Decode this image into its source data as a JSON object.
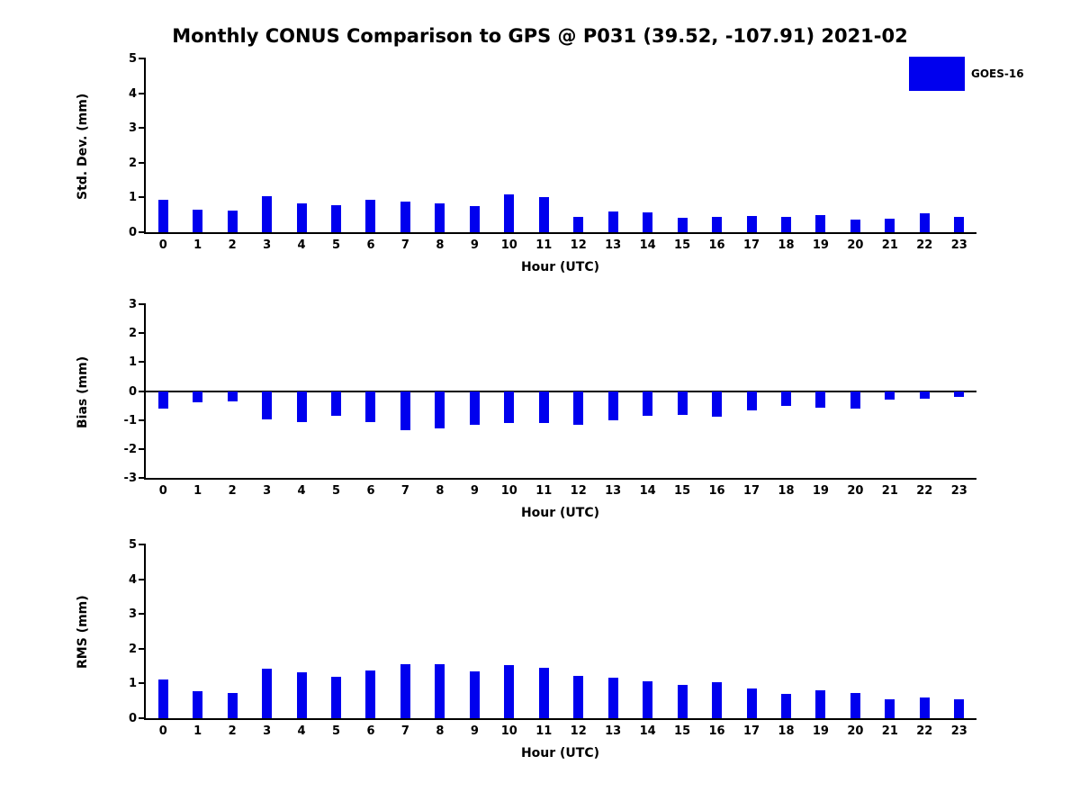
{
  "title": "Monthly CONUS Comparison to GPS @ P031 (39.52, -107.91) 2021-02",
  "legend": {
    "label": "GOES-16",
    "color": "#0000ee"
  },
  "chart_data": [
    {
      "type": "bar",
      "name": "std-dev",
      "title": "",
      "ylabel": "Std. Dev. (mm)",
      "xlabel": "Hour (UTC)",
      "ylim": [
        0,
        5
      ],
      "yticks": [
        0,
        1,
        2,
        3,
        4,
        5
      ],
      "grid": false,
      "categories": [
        "0",
        "1",
        "2",
        "3",
        "4",
        "5",
        "6",
        "7",
        "8",
        "9",
        "10",
        "11",
        "12",
        "13",
        "14",
        "15",
        "16",
        "17",
        "18",
        "19",
        "20",
        "21",
        "22",
        "23"
      ],
      "values": [
        0.92,
        0.64,
        0.62,
        1.03,
        0.82,
        0.79,
        0.92,
        0.87,
        0.82,
        0.74,
        1.08,
        1.0,
        0.44,
        0.6,
        0.56,
        0.41,
        0.44,
        0.46,
        0.44,
        0.49,
        0.36,
        0.38,
        0.54,
        0.44
      ]
    },
    {
      "type": "bar",
      "name": "bias",
      "title": "",
      "ylabel": "Bias (mm)",
      "xlabel": "Hour (UTC)",
      "ylim": [
        -3,
        3
      ],
      "yticks": [
        -3,
        -2,
        -1,
        0,
        1,
        2,
        3
      ],
      "grid": false,
      "categories": [
        "0",
        "1",
        "2",
        "3",
        "4",
        "5",
        "6",
        "7",
        "8",
        "9",
        "10",
        "11",
        "12",
        "13",
        "14",
        "15",
        "16",
        "17",
        "18",
        "19",
        "20",
        "21",
        "22",
        "23"
      ],
      "values": [
        -0.6,
        -0.4,
        -0.37,
        -0.97,
        -1.06,
        -0.84,
        -1.06,
        -1.34,
        -1.28,
        -1.16,
        -1.1,
        -1.1,
        -1.16,
        -1.0,
        -0.84,
        -0.81,
        -0.9,
        -0.66,
        -0.5,
        -0.56,
        -0.6,
        -0.31,
        -0.25,
        -0.19
      ]
    },
    {
      "type": "bar",
      "name": "rms",
      "title": "",
      "ylabel": "RMS (mm)",
      "xlabel": "Hour (UTC)",
      "ylim": [
        0,
        5
      ],
      "yticks": [
        0,
        1,
        2,
        3,
        4,
        5
      ],
      "grid": false,
      "categories": [
        "0",
        "1",
        "2",
        "3",
        "4",
        "5",
        "6",
        "7",
        "8",
        "9",
        "10",
        "11",
        "12",
        "13",
        "14",
        "15",
        "16",
        "17",
        "18",
        "19",
        "20",
        "21",
        "22",
        "23"
      ],
      "values": [
        1.11,
        0.78,
        0.73,
        1.42,
        1.32,
        1.19,
        1.37,
        1.55,
        1.55,
        1.35,
        1.53,
        1.45,
        1.22,
        1.17,
        1.06,
        0.96,
        1.04,
        0.85,
        0.7,
        0.8,
        0.73,
        0.54,
        0.6,
        0.54
      ]
    }
  ],
  "legend_position": "top-right"
}
